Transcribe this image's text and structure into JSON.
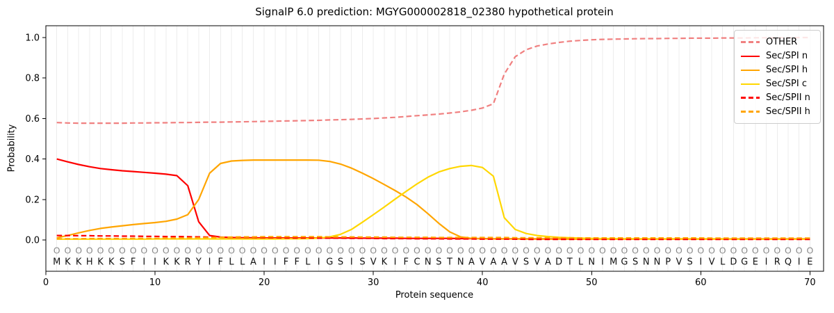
{
  "chart_data": {
    "type": "line",
    "title": "SignalP 6.0 prediction: MGYG000002818_02380 hypothetical protein",
    "xlabel": "Protein sequence",
    "ylabel": "Probability",
    "xticks": [
      0,
      10,
      20,
      30,
      40,
      50,
      60,
      70
    ],
    "yticks": [
      "0.0",
      "0.2",
      "0.4",
      "0.6",
      "0.8",
      "1.0"
    ],
    "xlim": [
      0,
      71.25
    ],
    "ylim": [
      -0.155,
      1.058
    ],
    "grid": "vertical-per-residue",
    "grid_color": "#ECECEC",
    "legend_position": "upper-right",
    "sequence": "MKKHKKSFIIKKRYIFLLAIIFFLIGSISVKIFCNSTNAVAAVSVADTLNIMGSNNPVSIVLDGEIRQIE",
    "residue_annotation": "O",
    "x": [
      1,
      2,
      3,
      4,
      5,
      6,
      7,
      8,
      9,
      10,
      11,
      12,
      13,
      14,
      15,
      16,
      17,
      18,
      19,
      20,
      21,
      22,
      23,
      24,
      25,
      26,
      27,
      28,
      29,
      30,
      31,
      32,
      33,
      34,
      35,
      36,
      37,
      38,
      39,
      40,
      41,
      42,
      43,
      44,
      45,
      46,
      47,
      48,
      49,
      50,
      51,
      52,
      53,
      54,
      55,
      56,
      57,
      58,
      59,
      60,
      61,
      62,
      63,
      64,
      65,
      66,
      67,
      68,
      69,
      70
    ],
    "series": [
      {
        "name": "OTHER",
        "color": "#F08080",
        "dash": "dashed",
        "values": [
          0.58,
          0.578,
          0.577,
          0.577,
          0.577,
          0.577,
          0.577,
          0.578,
          0.578,
          0.579,
          0.579,
          0.58,
          0.58,
          0.581,
          0.582,
          0.582,
          0.583,
          0.584,
          0.585,
          0.586,
          0.587,
          0.588,
          0.589,
          0.59,
          0.591,
          0.593,
          0.594,
          0.596,
          0.598,
          0.6,
          0.603,
          0.606,
          0.61,
          0.614,
          0.618,
          0.622,
          0.627,
          0.633,
          0.641,
          0.652,
          0.673,
          0.82,
          0.905,
          0.94,
          0.958,
          0.968,
          0.976,
          0.982,
          0.986,
          0.989,
          0.991,
          0.992,
          0.993,
          0.994,
          0.995,
          0.995,
          0.996,
          0.996,
          0.997,
          0.997,
          0.997,
          0.998,
          0.998,
          0.998,
          0.999,
          0.999,
          0.999,
          0.999,
          1.0,
          1.0
        ]
      },
      {
        "name": "Sec/SPI n",
        "color": "#FE0000",
        "dash": "solid",
        "values": [
          0.4,
          0.386,
          0.373,
          0.362,
          0.353,
          0.347,
          0.342,
          0.338,
          0.334,
          0.33,
          0.325,
          0.318,
          0.268,
          0.09,
          0.022,
          0.014,
          0.012,
          0.011,
          0.011,
          0.01,
          0.01,
          0.01,
          0.01,
          0.01,
          0.01,
          0.01,
          0.01,
          0.01,
          0.009,
          0.009,
          0.009,
          0.009,
          0.008,
          0.008,
          0.008,
          0.008,
          0.008,
          0.007,
          0.007,
          0.007,
          0.006,
          0.006,
          0.006,
          0.005,
          0.005,
          0.005,
          0.005,
          0.005,
          0.005,
          0.005,
          0.005,
          0.005,
          0.005,
          0.005,
          0.005,
          0.005,
          0.005,
          0.005,
          0.005,
          0.005,
          0.005,
          0.005,
          0.005,
          0.005,
          0.005,
          0.005,
          0.005,
          0.005,
          0.005,
          0.005
        ]
      },
      {
        "name": "Sec/SPI h",
        "color": "#FFA500",
        "dash": "solid",
        "values": [
          0.01,
          0.022,
          0.035,
          0.047,
          0.057,
          0.064,
          0.07,
          0.076,
          0.081,
          0.086,
          0.092,
          0.103,
          0.125,
          0.2,
          0.33,
          0.378,
          0.39,
          0.393,
          0.395,
          0.395,
          0.395,
          0.395,
          0.395,
          0.395,
          0.394,
          0.388,
          0.375,
          0.355,
          0.33,
          0.303,
          0.274,
          0.244,
          0.212,
          0.175,
          0.13,
          0.082,
          0.04,
          0.015,
          0.008,
          0.006,
          0.005,
          0.005,
          0.005,
          0.004,
          0.004,
          0.004,
          0.004,
          0.004,
          0.004,
          0.004,
          0.004,
          0.004,
          0.004,
          0.004,
          0.004,
          0.004,
          0.004,
          0.004,
          0.004,
          0.004,
          0.004,
          0.004,
          0.004,
          0.004,
          0.004,
          0.004,
          0.004,
          0.004,
          0.004,
          0.004
        ]
      },
      {
        "name": "Sec/SPI c",
        "color": "#FFD700",
        "dash": "solid",
        "values": [
          0.004,
          0.004,
          0.004,
          0.004,
          0.004,
          0.004,
          0.004,
          0.004,
          0.004,
          0.005,
          0.005,
          0.005,
          0.005,
          0.005,
          0.005,
          0.005,
          0.005,
          0.005,
          0.005,
          0.005,
          0.005,
          0.006,
          0.006,
          0.007,
          0.009,
          0.015,
          0.028,
          0.052,
          0.088,
          0.125,
          0.163,
          0.202,
          0.24,
          0.277,
          0.31,
          0.336,
          0.353,
          0.364,
          0.368,
          0.358,
          0.315,
          0.11,
          0.052,
          0.032,
          0.022,
          0.017,
          0.013,
          0.011,
          0.009,
          0.008,
          0.007,
          0.007,
          0.006,
          0.006,
          0.006,
          0.005,
          0.005,
          0.005,
          0.005,
          0.005,
          0.005,
          0.005,
          0.004,
          0.004,
          0.004,
          0.004,
          0.004,
          0.004,
          0.004,
          0.004
        ]
      },
      {
        "name": "Sec/SPII n",
        "color": "#FE0000",
        "dash": "dashed",
        "values": [
          0.022,
          0.022,
          0.021,
          0.021,
          0.02,
          0.02,
          0.019,
          0.019,
          0.018,
          0.018,
          0.017,
          0.017,
          0.016,
          0.015,
          0.014,
          0.013,
          0.013,
          0.012,
          0.012,
          0.011,
          0.011,
          0.01,
          0.01,
          0.01,
          0.009,
          0.009,
          0.009,
          0.008,
          0.008,
          0.008,
          0.007,
          0.007,
          0.007,
          0.006,
          0.006,
          0.006,
          0.005,
          0.005,
          0.005,
          0.004,
          0.004,
          0.004,
          0.004,
          0.003,
          0.003,
          0.003,
          0.003,
          0.003,
          0.003,
          0.003,
          0.003,
          0.003,
          0.003,
          0.003,
          0.003,
          0.003,
          0.003,
          0.003,
          0.003,
          0.003,
          0.003,
          0.003,
          0.003,
          0.003,
          0.003,
          0.003,
          0.003,
          0.003,
          0.003,
          0.003
        ]
      },
      {
        "name": "Sec/SPII h",
        "color": "#FFA500",
        "dash": "dashed",
        "values": [
          0.006,
          0.006,
          0.006,
          0.007,
          0.007,
          0.007,
          0.007,
          0.008,
          0.008,
          0.008,
          0.009,
          0.009,
          0.01,
          0.011,
          0.012,
          0.013,
          0.014,
          0.015,
          0.015,
          0.016,
          0.016,
          0.016,
          0.016,
          0.016,
          0.016,
          0.015,
          0.015,
          0.015,
          0.014,
          0.014,
          0.014,
          0.013,
          0.013,
          0.013,
          0.013,
          0.012,
          0.012,
          0.012,
          0.012,
          0.012,
          0.012,
          0.012,
          0.011,
          0.011,
          0.011,
          0.011,
          0.011,
          0.011,
          0.01,
          0.01,
          0.01,
          0.01,
          0.01,
          0.01,
          0.01,
          0.01,
          0.01,
          0.01,
          0.01,
          0.01,
          0.009,
          0.009,
          0.009,
          0.009,
          0.009,
          0.009,
          0.009,
          0.009,
          0.009,
          0.009
        ]
      }
    ]
  }
}
